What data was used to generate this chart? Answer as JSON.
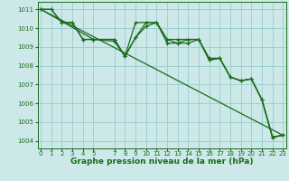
{
  "background_color": "#cce8e8",
  "grid_color": "#99cccc",
  "line_color": "#1a6b1a",
  "xlabel": "Graphe pression niveau de la mer (hPa)",
  "xlabel_fontsize": 6.5,
  "ylabel_ticks": [
    1004,
    1005,
    1006,
    1007,
    1008,
    1009,
    1010,
    1011
  ],
  "xlim": [
    -0.3,
    23.3
  ],
  "ylim": [
    1003.6,
    1011.4
  ],
  "xticks": [
    0,
    1,
    2,
    3,
    4,
    5,
    7,
    8,
    9,
    10,
    11,
    12,
    13,
    14,
    15,
    16,
    17,
    18,
    19,
    20,
    21,
    22,
    23
  ],
  "series1_x": [
    0,
    1,
    2,
    3,
    4,
    5,
    7,
    8,
    9,
    10,
    11,
    12,
    13,
    14,
    15,
    16,
    17,
    18,
    19,
    20,
    21,
    22,
    23
  ],
  "series1_y": [
    1011.0,
    1011.0,
    1010.3,
    1010.3,
    1009.4,
    1009.4,
    1009.4,
    1008.5,
    1010.3,
    1010.3,
    1010.3,
    1009.4,
    1009.4,
    1009.4,
    1009.4,
    1008.4,
    1008.4,
    1007.4,
    1007.2,
    1007.3,
    1006.2,
    1004.2,
    1004.3
  ],
  "series2_x": [
    0,
    1,
    2,
    3,
    4,
    5,
    7,
    8,
    9,
    10,
    11,
    12,
    13,
    14,
    15,
    16,
    17,
    18,
    19,
    20,
    21,
    22,
    23
  ],
  "series2_y": [
    1011.0,
    1011.0,
    1010.3,
    1010.3,
    1009.4,
    1009.4,
    1009.3,
    1008.5,
    1009.5,
    1010.1,
    1010.3,
    1009.2,
    1009.2,
    1009.2,
    1009.4,
    1008.3,
    1008.4,
    1007.4,
    1007.2,
    1007.3,
    1006.2,
    1004.2,
    1004.3
  ],
  "series3_x": [
    0,
    5,
    7,
    8,
    9,
    10,
    11,
    12,
    13,
    14,
    15,
    16,
    17,
    18,
    19,
    20,
    21,
    22,
    23
  ],
  "series3_y": [
    1011.0,
    1009.4,
    1009.4,
    1008.5,
    1009.5,
    1010.3,
    1010.3,
    1009.4,
    1009.2,
    1009.4,
    1009.4,
    1008.3,
    1008.4,
    1007.4,
    1007.2,
    1007.3,
    1006.2,
    1004.2,
    1004.3
  ],
  "trend_x": [
    0,
    23
  ],
  "trend_y": [
    1011.0,
    1004.3
  ],
  "marker_size": 3.0,
  "linewidth": 0.9,
  "tick_fontsize": 5.0
}
